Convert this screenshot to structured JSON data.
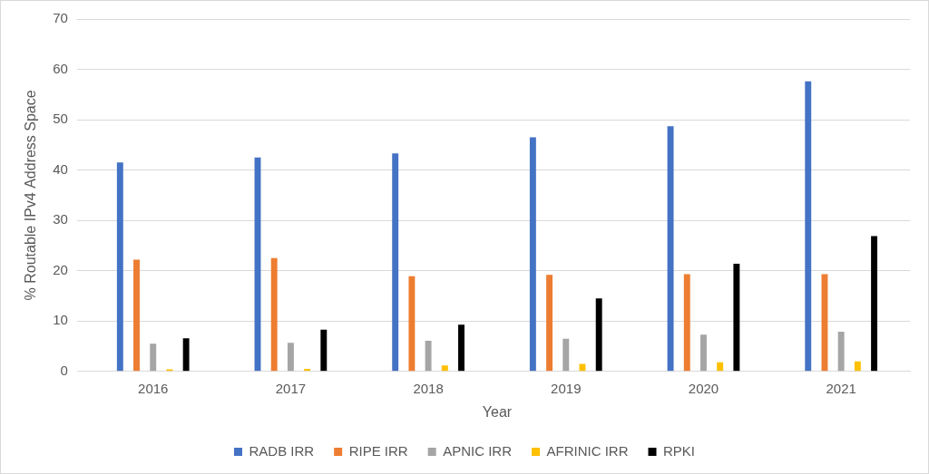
{
  "chart_data": {
    "type": "bar",
    "x_label": "Year",
    "y_label": "% Routable IPv4 Address Space",
    "categories": [
      "2016",
      "2017",
      "2018",
      "2019",
      "2020",
      "2021"
    ],
    "series": [
      {
        "name": "RADB IRR",
        "color": "#4472c4",
        "values": [
          41.5,
          42.5,
          43.3,
          46.5,
          48.7,
          57.6
        ]
      },
      {
        "name": "RIPE IRR",
        "color": "#ed7d31",
        "values": [
          22.2,
          22.5,
          18.9,
          19.2,
          19.3,
          19.3
        ]
      },
      {
        "name": "APNIC IRR",
        "color": "#a5a5a5",
        "values": [
          5.5,
          5.7,
          6.1,
          6.5,
          7.3,
          7.9
        ]
      },
      {
        "name": "AFRINIC IRR",
        "color": "#ffc000",
        "values": [
          0.4,
          0.5,
          1.2,
          1.5,
          1.8,
          2.0
        ]
      },
      {
        "name": "RPKI",
        "color": "#000000",
        "values": [
          6.6,
          8.3,
          9.3,
          14.5,
          21.4,
          26.9
        ]
      }
    ],
    "ylim": [
      0,
      70
    ],
    "yticks": [
      0,
      10,
      20,
      30,
      40,
      50,
      60,
      70
    ],
    "grid": true,
    "legend": "bottom"
  }
}
